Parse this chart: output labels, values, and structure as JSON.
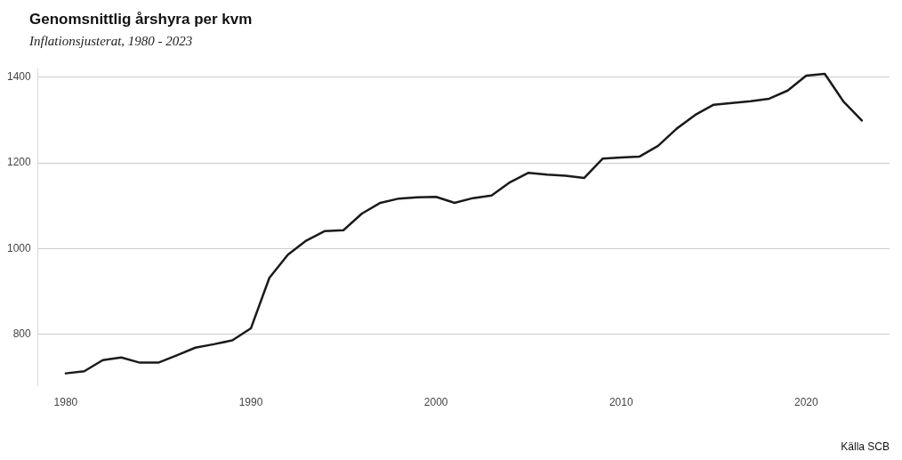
{
  "chart_data": {
    "type": "line",
    "title": "Genomsnittlig årshyra per kvm",
    "subtitle": "Inflationsjusterat, 1980 - 2023",
    "annotations": [
      "Källa SCB"
    ],
    "x": [
      1980,
      1981,
      1982,
      1983,
      1984,
      1985,
      1986,
      1987,
      1988,
      1989,
      1990,
      1991,
      1992,
      1993,
      1994,
      1995,
      1996,
      1997,
      1998,
      1999,
      2000,
      2001,
      2002,
      2003,
      2004,
      2005,
      2006,
      2007,
      2008,
      2009,
      2010,
      2011,
      2012,
      2013,
      2014,
      2015,
      2016,
      2017,
      2018,
      2019,
      2020,
      2021,
      2022,
      2023
    ],
    "series": [
      {
        "color": "#1a1a1a",
        "values": [
          709,
          714,
          740,
          746,
          734,
          734,
          751,
          769,
          777,
          786,
          814,
          932,
          986,
          1019,
          1041,
          1043,
          1082,
          1107,
          1117,
          1120,
          1121,
          1107,
          1118,
          1124,
          1155,
          1177,
          1173,
          1170,
          1165,
          1210,
          1213,
          1215,
          1240,
          1280,
          1312,
          1336,
          1340,
          1344,
          1350,
          1369,
          1404,
          1408,
          1344,
          1299
        ]
      }
    ],
    "xlim": [
      1978.5,
      2024.5
    ],
    "xticks": [
      1980,
      1990,
      2000,
      2010,
      2020
    ],
    "ylim": [
      680,
      1420
    ],
    "yticks": [
      800,
      1000,
      1200,
      1400
    ],
    "grid": "y",
    "legend": false,
    "marker": "none",
    "line_style": "solid"
  }
}
